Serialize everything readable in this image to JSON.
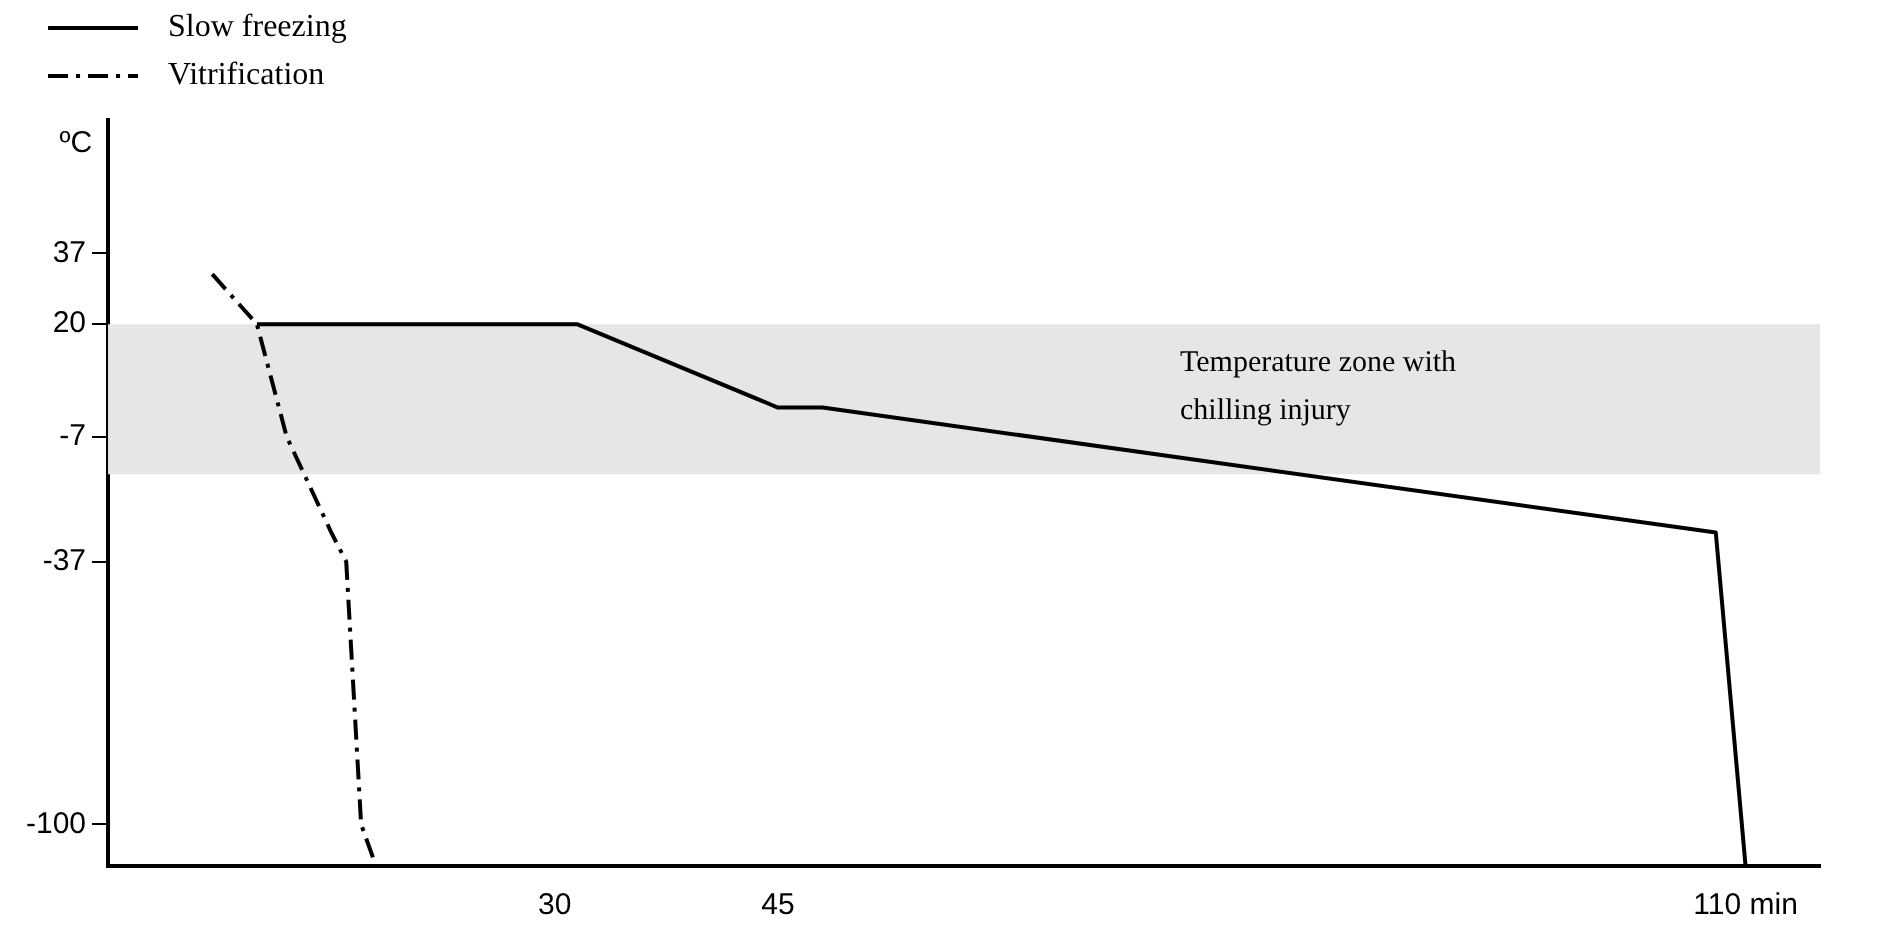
{
  "chart_data": {
    "type": "line",
    "ylabel": "ºC",
    "xlim": [
      0,
      115
    ],
    "ylim": [
      -110,
      69
    ],
    "xticks": [
      30,
      45,
      {
        "value": 110,
        "label": "110 min"
      }
    ],
    "yticks": [
      37,
      20,
      -7,
      -37,
      -100
    ],
    "grid": false,
    "legend": "top left",
    "marker": "none",
    "bands": [
      {
        "axis": "y",
        "from": -16,
        "to": 20,
        "label": "Temperature zone with chilling injury",
        "color": "#e6e6e6"
      }
    ],
    "series": [
      {
        "name": "Slow freezing",
        "color": "#000000",
        "line_style": "solid",
        "x": [
          10,
          31.5,
          45,
          48,
          108,
          110
        ],
        "values": [
          20,
          20,
          0,
          0,
          -30,
          -110
        ]
      },
      {
        "name": "Vitrification",
        "color": "#000000",
        "line_style": "dashed",
        "x": [
          7,
          10,
          12,
          15,
          16,
          17,
          18
        ],
        "values": [
          32,
          20,
          -7,
          -30,
          -37,
          -100,
          -110
        ]
      }
    ]
  }
}
